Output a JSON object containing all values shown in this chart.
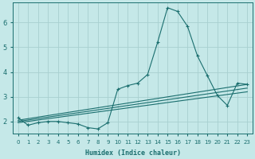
{
  "xlabel": "Humidex (Indice chaleur)",
  "bg_color": "#c5e8e8",
  "grid_color": "#a8d0d0",
  "line_color": "#1a6e6e",
  "xlim": [
    -0.5,
    23.5
  ],
  "ylim": [
    1.5,
    6.8
  ],
  "yticks": [
    2,
    3,
    4,
    5,
    6
  ],
  "xticks": [
    0,
    1,
    2,
    3,
    4,
    5,
    6,
    7,
    8,
    9,
    10,
    11,
    12,
    13,
    14,
    15,
    16,
    17,
    18,
    19,
    20,
    21,
    22,
    23
  ],
  "series1_x": [
    0,
    1,
    2,
    3,
    4,
    5,
    6,
    7,
    8,
    9,
    10,
    11,
    12,
    13,
    14,
    15,
    16,
    17,
    18,
    19,
    20,
    21,
    22,
    23
  ],
  "series1_y": [
    2.15,
    1.85,
    1.95,
    2.0,
    2.0,
    1.95,
    1.9,
    1.75,
    1.7,
    1.95,
    3.3,
    3.45,
    3.55,
    3.9,
    5.2,
    6.6,
    6.45,
    5.85,
    4.65,
    3.85,
    3.05,
    2.65,
    3.55,
    3.5
  ],
  "series2_x": [
    0,
    23
  ],
  "series2_y": [
    2.05,
    3.5
  ],
  "series3_x": [
    0,
    23
  ],
  "series3_y": [
    2.0,
    3.35
  ],
  "series4_x": [
    0,
    23
  ],
  "series4_y": [
    1.95,
    3.2
  ],
  "xlabel_fontsize": 6,
  "tick_fontsize_x": 5,
  "tick_fontsize_y": 6
}
